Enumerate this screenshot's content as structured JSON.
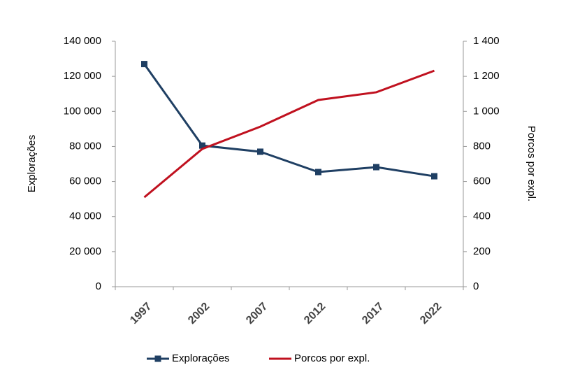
{
  "chart_data": {
    "type": "line",
    "categories": [
      "1997",
      "2002",
      "2007",
      "2012",
      "2017",
      "2022"
    ],
    "series": [
      {
        "name": "Explorações",
        "color": "#1f3f63",
        "marker": "square",
        "values": [
          127000,
          80500,
          77000,
          65400,
          68200,
          63000
        ]
      },
      {
        "name": "Porcos por expl.",
        "color": "#c0111f",
        "axis": "y2",
        "values": [
          510,
          786,
          913,
          1065,
          1109,
          1232
        ]
      }
    ],
    "ylabel": "Explorações",
    "y2label": "Porcos por expl.",
    "ylim": [
      0,
      140000
    ],
    "yticks": [
      0,
      {
        "value": 20000,
        "label": "20 000"
      },
      {
        "value": 40000,
        "label": "40 000"
      },
      {
        "value": 60000,
        "label": "60 000"
      },
      {
        "value": 80000,
        "label": "80 000"
      },
      {
        "value": 100000,
        "label": "100 000"
      },
      {
        "value": 120000,
        "label": "120 000"
      },
      {
        "value": 140000,
        "label": "140 000"
      }
    ],
    "y2lim": [
      0,
      1400
    ],
    "y2ticks": [
      0,
      200,
      400,
      600,
      800,
      {
        "value": 1000,
        "label": "1 000"
      },
      {
        "value": 1200,
        "label": "1 200"
      },
      {
        "value": 1400,
        "label": "1 400"
      }
    ],
    "grid": false,
    "legend": "bottom"
  }
}
